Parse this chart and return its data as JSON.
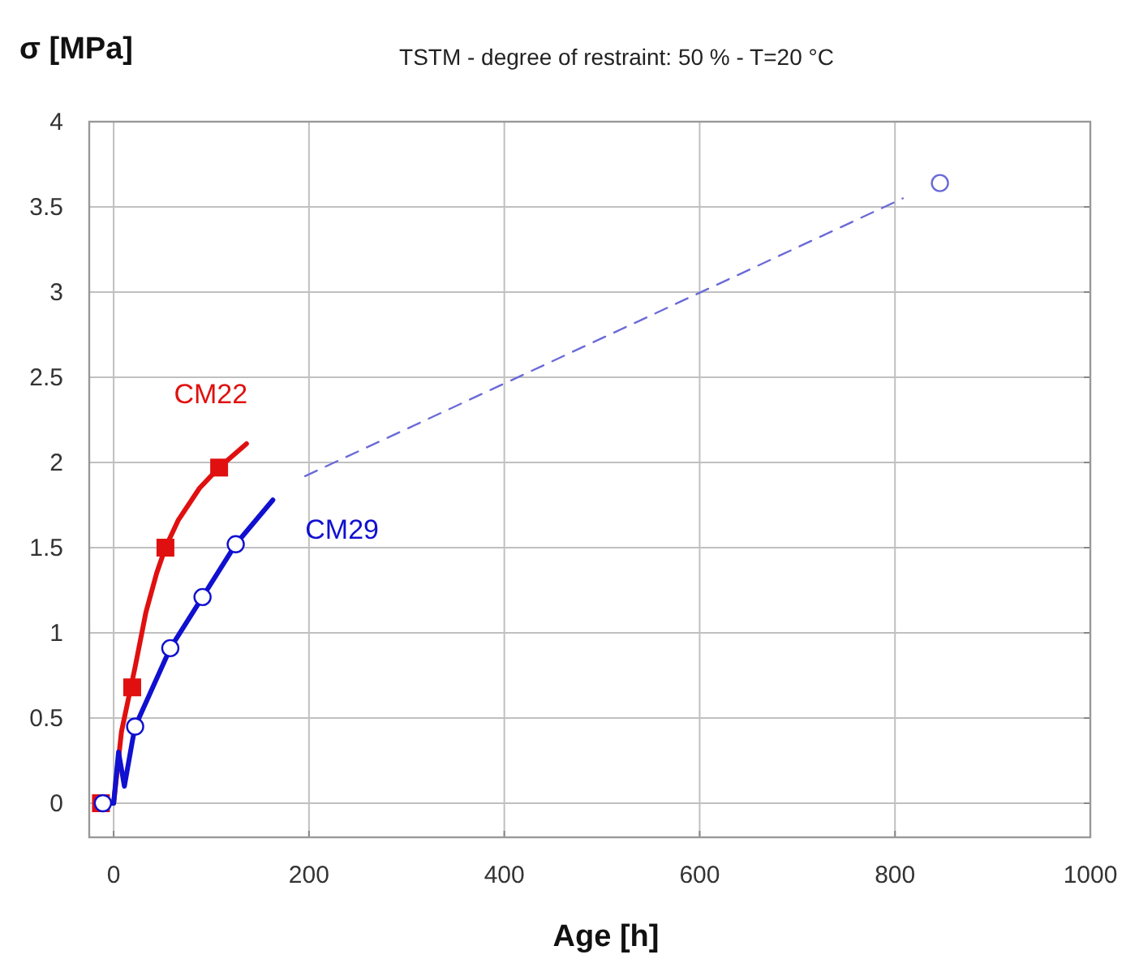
{
  "chart_data": {
    "type": "line",
    "title": "TSTM - degree of restraint: 50 % - T=20 °C",
    "xlabel": "Age [h]",
    "ylabel": "σ [MPa]",
    "xlim": [
      -25,
      1000
    ],
    "xticks": [
      0,
      200,
      400,
      600,
      800,
      1000
    ],
    "ylim": [
      -0.2,
      4
    ],
    "yticks": [
      0,
      0.5,
      1,
      1.5,
      2,
      2.5,
      3,
      3.5,
      4
    ],
    "grid": true,
    "series": [
      {
        "name": "CM22",
        "color": "#e01010",
        "marker": "none",
        "line_style": "solid",
        "x": [
          -13,
          0,
          8,
          22,
          33,
          44,
          53,
          66,
          88,
          108,
          136
        ],
        "values": [
          0,
          0,
          0.42,
          0.8,
          1.12,
          1.35,
          1.5,
          1.66,
          1.85,
          1.97,
          2.11
        ]
      },
      {
        "type": "scatter",
        "color": "#e01010",
        "marker": "square",
        "x": [
          -13,
          19,
          53,
          108
        ],
        "values": [
          0,
          0.68,
          1.5,
          1.97
        ]
      },
      {
        "name": "CM29",
        "color": "#1010d0",
        "marker": "none",
        "line_style": "solid",
        "x": [
          -11,
          0,
          5,
          11,
          19,
          22,
          58,
          91,
          125,
          163
        ],
        "values": [
          0,
          0,
          0.3,
          0.1,
          0.36,
          0.45,
          0.91,
          1.21,
          1.52,
          1.78
        ]
      },
      {
        "type": "scatter",
        "color": "#1010d0",
        "marker": "circle",
        "x": [
          -11,
          22,
          58,
          91,
          125
        ],
        "values": [
          0,
          0.45,
          0.91,
          1.21,
          1.52
        ]
      },
      {
        "color": "#6a6ad8",
        "marker": "none",
        "line_style": "dashed",
        "x": [
          196,
          808
        ],
        "values": [
          1.92,
          3.55
        ]
      },
      {
        "type": "scatter",
        "color": "#6a6ad8",
        "marker": "circle",
        "x": [
          846
        ],
        "values": [
          3.64
        ]
      }
    ]
  }
}
